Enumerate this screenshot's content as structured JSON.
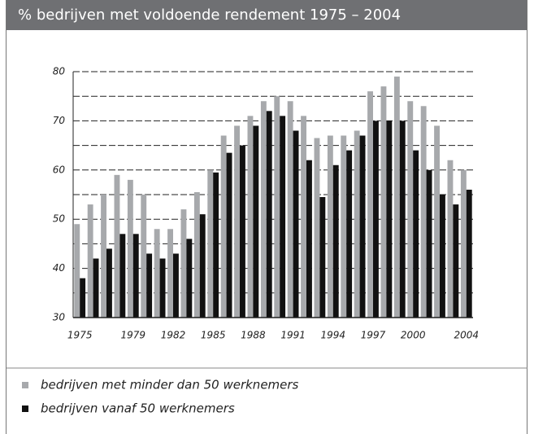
{
  "chart_data": {
    "type": "bar",
    "title": "% bedrijven met voldoende rendement 1975 – 2004",
    "categories": [
      "1975",
      null,
      null,
      null,
      "1979",
      null,
      null,
      "1982",
      null,
      null,
      "1985",
      null,
      null,
      "1988",
      null,
      null,
      "1991",
      null,
      null,
      "1994",
      null,
      null,
      "1997",
      null,
      null,
      "2000",
      null,
      null,
      null,
      "2004"
    ],
    "series": [
      {
        "name": "bedrijven  met minder dan 50 werknemers",
        "color": "#a7a9ac",
        "values": [
          49,
          53,
          55,
          59,
          58,
          55,
          48,
          48,
          52,
          55.5,
          60,
          67,
          69,
          71,
          74,
          75,
          74,
          71,
          66.5,
          67,
          67,
          68,
          76,
          77,
          79,
          74,
          73,
          69,
          62,
          60
        ]
      },
      {
        "name": "bedrijven vanaf 50 werknemers",
        "color": "#111111",
        "values": [
          38,
          42,
          44,
          47,
          47,
          43,
          42,
          43,
          46,
          51,
          59.5,
          63.5,
          65,
          69,
          72,
          71,
          68,
          62,
          54.5,
          61,
          64,
          67,
          70,
          70,
          70,
          64,
          60,
          55,
          53,
          56
        ]
      }
    ],
    "ylim": [
      30,
      80
    ],
    "yticks": [
      30,
      40,
      50,
      60,
      70,
      80
    ],
    "minor_yticks": [
      35,
      45,
      55,
      65,
      75
    ],
    "grid": true
  }
}
